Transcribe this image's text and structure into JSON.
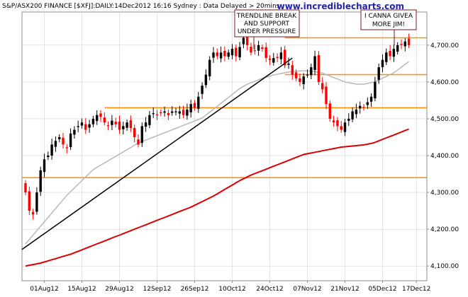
{
  "header": "S&P/ASX200 FINANCE [$XFJ]:DAILY:14Dec2012 16:16 Sydney : Data Delayed > 20mins",
  "watermark": "www.incrediblecharts.com",
  "chart_data": {
    "type": "candlestick",
    "ylim": [
      4060,
      4790
    ],
    "y_ticks": [
      4100,
      4200,
      4300,
      4400,
      4500,
      4600,
      4700
    ],
    "y_tick_labels": [
      "4,100.00",
      "4,200.00",
      "4,300.00",
      "4,400.00",
      "4,500.00",
      "4,600.00",
      "4,700.00"
    ],
    "x_tick_labels": [
      {
        "label": "01Aug12",
        "bar": 5
      },
      {
        "label": "15Aug12",
        "bar": 15
      },
      {
        "label": "29Aug12",
        "bar": 25
      },
      {
        "label": "12Sep12",
        "bar": 35
      },
      {
        "label": "26Sep12",
        "bar": 45
      },
      {
        "label": "10Oct12",
        "bar": 55
      },
      {
        "label": "24Oct12",
        "bar": 65
      },
      {
        "label": "07Nov12",
        "bar": 75
      },
      {
        "label": "21Nov12",
        "bar": 85
      },
      {
        "label": "05Dec12",
        "bar": 95
      },
      {
        "label": "17Dec12",
        "bar": 104
      }
    ],
    "closes": [
      4300,
      4250,
      4240,
      4300,
      4360,
      4390,
      4400,
      4430,
      4440,
      4450,
      4430,
      4420,
      4460,
      4470,
      4480,
      4490,
      4470,
      4485,
      4500,
      4510,
      4505,
      4490,
      4480,
      4495,
      4485,
      4470,
      4480,
      4490,
      4475,
      4450,
      4430,
      4480,
      4490,
      4510,
      4515,
      4510,
      4515,
      4520,
      4510,
      4520,
      4520,
      4520,
      4510,
      4525,
      4540,
      4530,
      4560,
      4590,
      4620,
      4660,
      4680,
      4670,
      4680,
      4670,
      4680,
      4690,
      4670,
      4695,
      4720,
      4700,
      4680,
      4685,
      4700,
      4690,
      4665,
      4660,
      4665,
      4665,
      4680,
      4645,
      4650,
      4620,
      4610,
      4600,
      4615,
      4620,
      4640,
      4670,
      4600,
      4580,
      4540,
      4500,
      4490,
      4480,
      4470,
      4490,
      4500,
      4520,
      4525,
      4535,
      4530,
      4545,
      4560,
      4600,
      4640,
      4660,
      4680,
      4670,
      4690,
      4700,
      4700,
      4710,
      4700
    ],
    "ma_fast": [
      4160,
      4172,
      4184,
      4196,
      4208,
      4220,
      4232,
      4244,
      4256,
      4268,
      4280,
      4292,
      4302,
      4312,
      4322,
      4332,
      4342,
      4352,
      4362,
      4368,
      4374,
      4380,
      4386,
      4392,
      4398,
      4404,
      4410,
      4416,
      4422,
      4428,
      4434,
      4438,
      4442,
      4446,
      4450,
      4454,
      4458,
      4462,
      4466,
      4470,
      4474,
      4478,
      4482,
      4486,
      4490,
      4494,
      4498,
      4502,
      4510,
      4518,
      4526,
      4534,
      4542,
      4550,
      4558,
      4566,
      4574,
      4582,
      4588,
      4594,
      4598,
      4602,
      4606,
      4610,
      4613,
      4616,
      4619,
      4621,
      4623,
      4625,
      4627,
      4628,
      4629,
      4630,
      4630,
      4630,
      4629,
      4628,
      4626,
      4624,
      4620,
      4616,
      4612,
      4608,
      4604,
      4600,
      4598,
      4596,
      4594,
      4594,
      4594,
      4596,
      4598,
      4601,
      4605,
      4610,
      4615,
      4620,
      4625,
      4632,
      4640,
      4648,
      4655
    ],
    "ma_slow": [
      4100,
      4102,
      4104,
      4106,
      4108,
      4111,
      4114,
      4117,
      4120,
      4123,
      4126,
      4129,
      4132,
      4136,
      4140,
      4144,
      4148,
      4152,
      4156,
      4160,
      4164,
      4168,
      4172,
      4176,
      4180,
      4184,
      4188,
      4192,
      4196,
      4200,
      4204,
      4208,
      4212,
      4216,
      4220,
      4224,
      4228,
      4232,
      4236,
      4240,
      4244,
      4248,
      4252,
      4256,
      4260,
      4265,
      4270,
      4275,
      4280,
      4285,
      4290,
      4296,
      4302,
      4308,
      4314,
      4320,
      4326,
      4332,
      4337,
      4342,
      4347,
      4351,
      4355,
      4359,
      4363,
      4367,
      4371,
      4375,
      4379,
      4383,
      4387,
      4391,
      4395,
      4399,
      4403,
      4405,
      4407,
      4409,
      4411,
      4413,
      4415,
      4417,
      4419,
      4421,
      4423,
      4424,
      4425,
      4426,
      4427,
      4428,
      4429,
      4431,
      4433,
      4436,
      4440,
      4444,
      4448,
      4452,
      4456,
      4460,
      4464,
      4468,
      4472
    ],
    "horizontal_levels": [
      4720,
      4620,
      4530,
      4340
    ],
    "horizontal_level_starts": [
      69,
      69,
      21,
      0
    ],
    "trendline": {
      "start": [
        0,
        4145
      ],
      "end": [
        71,
        4665
      ]
    },
    "annotations": [
      {
        "lines": [
          "TRENDLINE BREAK",
          "AND SUPPORT",
          "UNDER PRESSURE"
        ]
      },
      {
        "lines": [
          "I CANNA GIVEA",
          "MORE JIM!"
        ]
      }
    ],
    "colors": {
      "up": "#000000",
      "down": "#ff0000",
      "level": "#ff8c00",
      "ma_fast": "#b8b8b8",
      "ma_slow": "#dd0000",
      "trend": "#000000",
      "grid": "#c8c8c8",
      "frame": "#8c8c8c"
    },
    "grid": true
  }
}
